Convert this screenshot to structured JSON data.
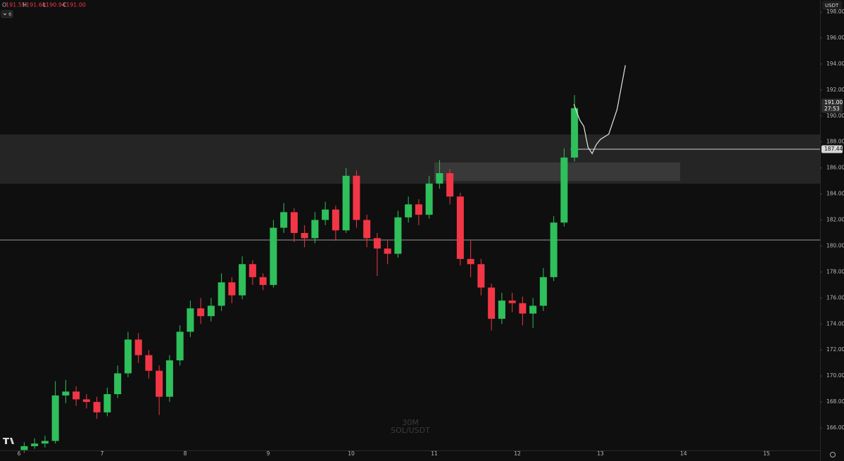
{
  "header": {
    "ohlc_keys": [
      "O",
      "H",
      "L",
      "C"
    ],
    "ohlc_values": [
      "191.55",
      "191.60",
      "190.94",
      "191.00"
    ],
    "indicators": "6",
    "currency": "USDT"
  },
  "chart_data": {
    "type": "candlestick",
    "watermark": [
      "30M",
      "SOL/USDT"
    ],
    "x": [
      6.0625,
      6.1875,
      6.3125,
      6.4375,
      6.5625,
      6.6875,
      6.8125,
      6.9375,
      7.0625,
      7.1875,
      7.3125,
      7.4375,
      7.5625,
      7.6875,
      7.8125,
      7.9375,
      8.0625,
      8.1875,
      8.3125,
      8.4375,
      8.5625,
      8.6875,
      8.8125,
      8.9375,
      9.0625,
      9.1875,
      9.3125,
      9.4375,
      9.5625,
      9.6875,
      9.8125,
      9.9375,
      10.0625,
      10.1875,
      10.3125,
      10.4375,
      10.5625,
      10.6875,
      10.8125,
      10.9375,
      11.0625,
      11.1875,
      11.3125,
      11.4375,
      11.5625,
      11.6875,
      11.8125,
      11.9375,
      12.0625,
      12.1875,
      12.3125,
      12.4375,
      12.5625,
      12.6875
    ],
    "open": [
      164.3,
      164.6,
      164.8,
      165.0,
      168.5,
      168.8,
      168.2,
      168.0,
      167.2,
      168.6,
      170.2,
      172.8,
      171.6,
      170.4,
      168.4,
      171.2,
      173.4,
      175.2,
      174.6,
      175.4,
      177.2,
      176.2,
      178.6,
      177.6,
      177.0,
      181.4,
      182.6,
      181.0,
      180.6,
      182.0,
      182.8,
      181.2,
      185.4,
      182.0,
      180.6,
      179.8,
      179.4,
      182.2,
      183.2,
      182.4,
      184.8,
      185.6,
      183.8,
      179.0,
      178.6,
      176.8,
      174.4,
      175.8,
      175.6,
      174.8,
      175.4,
      177.6,
      181.8,
      186.8
    ],
    "high": [
      164.9,
      165.2,
      165.4,
      169.6,
      169.7,
      169.2,
      168.6,
      168.4,
      169.1,
      170.8,
      173.4,
      173.3,
      172.0,
      170.8,
      171.6,
      173.9,
      175.8,
      176.0,
      176.0,
      177.9,
      177.6,
      179.2,
      178.9,
      177.9,
      182.0,
      183.3,
      182.9,
      181.6,
      182.6,
      183.4,
      183.1,
      186.0,
      185.8,
      182.4,
      181.0,
      180.4,
      182.7,
      183.8,
      183.6,
      185.4,
      186.6,
      185.9,
      184.1,
      180.4,
      179.0,
      177.1,
      176.4,
      176.4,
      176.1,
      176.0,
      178.3,
      182.3,
      187.5,
      191.6
    ],
    "low": [
      164.1,
      164.4,
      164.5,
      164.8,
      167.9,
      167.7,
      167.5,
      166.7,
      166.9,
      168.3,
      169.9,
      171.0,
      169.8,
      167.0,
      168.0,
      170.8,
      173.0,
      174.0,
      174.2,
      175.0,
      175.6,
      175.9,
      177.0,
      176.6,
      176.8,
      181.0,
      180.3,
      179.9,
      180.2,
      181.6,
      180.4,
      181.0,
      181.4,
      179.9,
      177.7,
      178.6,
      179.1,
      181.8,
      181.6,
      182.1,
      184.4,
      183.2,
      178.5,
      177.6,
      176.2,
      173.5,
      174.0,
      174.9,
      173.9,
      173.7,
      175.0,
      177.3,
      181.5,
      186.5
    ],
    "close": [
      164.6,
      164.8,
      165.0,
      168.5,
      168.8,
      168.2,
      168.0,
      167.2,
      168.6,
      170.2,
      172.8,
      171.6,
      170.4,
      168.4,
      171.2,
      173.4,
      175.2,
      174.6,
      175.4,
      177.2,
      176.2,
      178.6,
      177.6,
      177.0,
      181.4,
      182.6,
      181.0,
      180.6,
      182.0,
      182.8,
      181.2,
      185.4,
      182.0,
      180.6,
      179.8,
      179.4,
      182.2,
      183.2,
      182.4,
      184.8,
      185.6,
      183.8,
      179.0,
      178.6,
      176.8,
      174.4,
      175.8,
      175.6,
      174.8,
      175.4,
      177.6,
      181.8,
      186.8,
      190.6
    ],
    "up_color": "#2fbf5b",
    "down_color": "#f23645",
    "projection": {
      "x": [
        12.68,
        12.75,
        12.8,
        12.85,
        12.9,
        12.95,
        13.0,
        13.1,
        13.2,
        13.3
      ],
      "values": [
        190.9,
        189.7,
        189.2,
        187.6,
        187.1,
        187.8,
        188.2,
        188.6,
        190.5,
        193.9
      ],
      "color": "#e6e6e6"
    },
    "levels": [
      180.46
    ],
    "zones": [
      {
        "y": [
          184.79,
          188.58
        ]
      },
      {
        "x": [
          11.0,
          13.96
        ],
        "y": [
          185.0,
          186.42
        ]
      }
    ],
    "price_line": {
      "value": 187.44,
      "label": "187.44",
      "x_start": 12.64
    },
    "last_price": {
      "value": 191.0,
      "label": "191.00",
      "countdown": "27:53"
    },
    "xlim": [
      5.771,
      15.644
    ],
    "ylim": [
      164.27,
      198.92
    ],
    "xticks": [
      6,
      7,
      8,
      9,
      10,
      11,
      12,
      13,
      14,
      15
    ],
    "yticks": [
      {
        "value": 166,
        "label": "166.00"
      },
      {
        "value": 168,
        "label": "168.00"
      },
      {
        "value": 170,
        "label": "170.00"
      },
      {
        "value": 172,
        "label": "172.00"
      },
      {
        "value": 174,
        "label": "174.00"
      },
      {
        "value": 176,
        "label": "176.00"
      },
      {
        "value": 178,
        "label": "178.00"
      },
      {
        "value": 180,
        "label": "180.00"
      },
      {
        "value": 182,
        "label": "182.00"
      },
      {
        "value": 184,
        "label": "184.00"
      },
      {
        "value": 186,
        "label": "186.00"
      },
      {
        "value": 188,
        "label": "188.00"
      },
      {
        "value": 190,
        "label": "190.00"
      },
      {
        "value": 192,
        "label": "192.00"
      },
      {
        "value": 194,
        "label": "194.00"
      },
      {
        "value": 196,
        "label": "196.00"
      },
      {
        "value": 198,
        "label": "198.00"
      }
    ]
  }
}
